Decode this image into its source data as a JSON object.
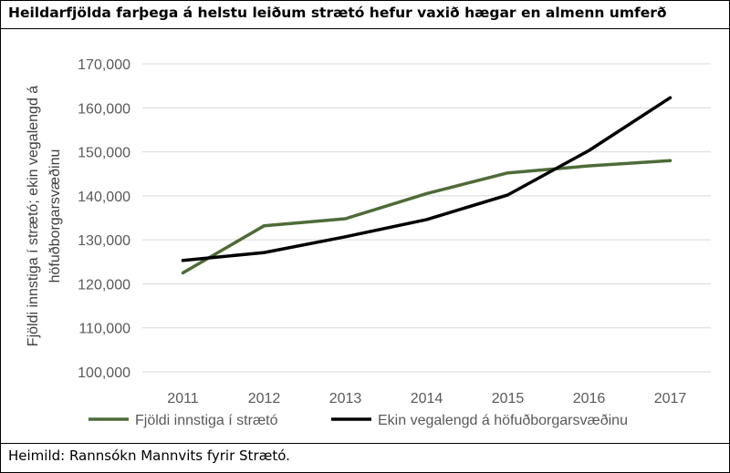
{
  "title": "Heildarfjölda farþega á helstu leiðum strætó hefur vaxið hægar en almenn umferð",
  "source": "Heimild: Rannsókn Mannvits fyrir Strætó.",
  "colors": {
    "green": "#4e6b38",
    "black": "#000000",
    "grid": "#d9d9d9",
    "text": "#595959"
  },
  "chart_data": {
    "type": "line",
    "title": "Heildarfjölda farþega á helstu leiðum strætó hefur vaxið hægar en almenn umferð",
    "xlabel": "",
    "ylabel": "Fjöldi innstiga í strætó; ekin vegalengd á höfuðborgarsvæðinu",
    "ylabel_lines": [
      "Fjöldi innstiga í strætó; ekin vegalengd á",
      "höfuðborgarsvæðinu"
    ],
    "categories": [
      "2011",
      "2012",
      "2013",
      "2014",
      "2015",
      "2016",
      "2017"
    ],
    "ylim": [
      100000,
      170000
    ],
    "yticks": [
      100000,
      110000,
      120000,
      130000,
      140000,
      150000,
      160000,
      170000
    ],
    "ytick_labels": [
      "100,000",
      "110,000",
      "120,000",
      "130,000",
      "140,000",
      "150,000",
      "160,000",
      "170,000"
    ],
    "grid": true,
    "legend_position": "bottom",
    "series": [
      {
        "name": "Fjöldi innstiga í strætó",
        "color": "#4e6b38",
        "values": [
          122500,
          133200,
          134800,
          140500,
          145200,
          146800,
          148000
        ]
      },
      {
        "name": "Ekin vegalengd á höfuðborgarsvæðinu",
        "color": "#000000",
        "values": [
          125300,
          127100,
          130700,
          134600,
          140200,
          150300,
          162300
        ]
      }
    ]
  }
}
